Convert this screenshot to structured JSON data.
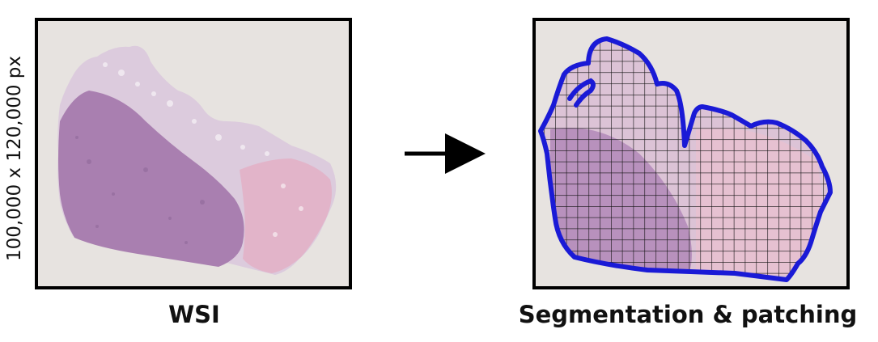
{
  "diagram": {
    "left_panel": {
      "caption": "WSI",
      "dimension_label": "100,000 x 120,000 px"
    },
    "right_panel": {
      "caption": "Segmentation & patching"
    },
    "arrow": {
      "direction": "right"
    },
    "colors": {
      "slide_background": "#e7e3e0",
      "tissue_dense": "#a97fb0",
      "tissue_light": "#dccbdd",
      "tissue_pink": "#e2b4c9",
      "contour": "#1a1ad6",
      "grid": "#111111",
      "frame": "#000000"
    }
  }
}
